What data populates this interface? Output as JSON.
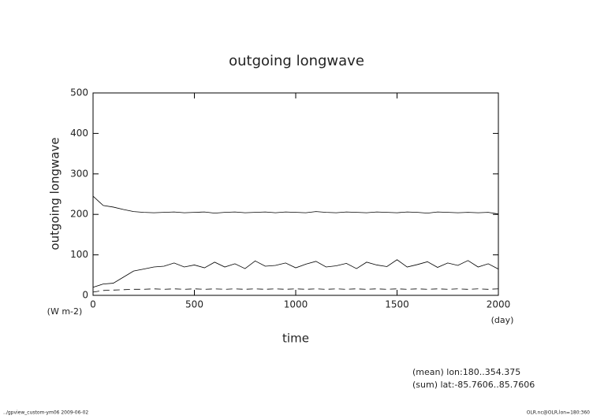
{
  "chart_data": {
    "type": "line",
    "title": "outgoing longwave",
    "y_label": "outgoing longwave",
    "y_units": "(W m-2)",
    "x_label": "time",
    "x_units": "(day)",
    "annotations": [
      "(mean) lon:180..354.375",
      "(sum) lat:-85.7606..85.7606"
    ],
    "footer_left": "../gpview_custom-ym06  2009-06-02",
    "footer_right": "OLR.nc@OLR,lon=180:360",
    "x": [
      0,
      50,
      100,
      150,
      200,
      250,
      300,
      350,
      400,
      450,
      500,
      550,
      600,
      650,
      700,
      750,
      800,
      850,
      900,
      950,
      1000,
      1050,
      1100,
      1150,
      1200,
      1250,
      1300,
      1350,
      1400,
      1450,
      1500,
      1550,
      1600,
      1650,
      1700,
      1750,
      1800,
      1850,
      1900,
      1950,
      2000
    ],
    "series": [
      {
        "color": "#000000",
        "style": "solid",
        "values": [
          245,
          222,
          218,
          212,
          207,
          205,
          204,
          205,
          206,
          204,
          205,
          206,
          203,
          205,
          206,
          204,
          205,
          206,
          204,
          206,
          205,
          204,
          207,
          205,
          204,
          206,
          205,
          204,
          206,
          205,
          204,
          206,
          205,
          203,
          206,
          205,
          204,
          205,
          204,
          205,
          201
        ]
      },
      {
        "color": "#000000",
        "style": "solid",
        "values": [
          20,
          28,
          30,
          45,
          60,
          65,
          70,
          72,
          80,
          70,
          75,
          68,
          82,
          70,
          78,
          66,
          85,
          72,
          74,
          80,
          68,
          77,
          84,
          70,
          73,
          79,
          66,
          82,
          75,
          71,
          88,
          70,
          76,
          83,
          69,
          80,
          74,
          86,
          70,
          78,
          65
        ]
      },
      {
        "color": "#000000",
        "style": "dashed",
        "values": [
          8,
          12,
          13,
          14,
          15,
          15,
          16,
          15,
          16,
          15,
          16,
          15,
          16,
          15,
          16,
          15,
          16,
          15,
          16,
          15,
          16,
          15,
          16,
          15,
          16,
          15,
          16,
          15,
          16,
          15,
          16,
          15,
          16,
          15,
          16,
          15,
          16,
          15,
          16,
          15,
          16
        ]
      }
    ],
    "xlim": [
      0,
      2000
    ],
    "xticks": [
      0,
      500,
      1000,
      1500,
      2000
    ],
    "ylim": [
      0,
      500
    ],
    "yticks": [
      0,
      100,
      200,
      300,
      400,
      500
    ]
  }
}
